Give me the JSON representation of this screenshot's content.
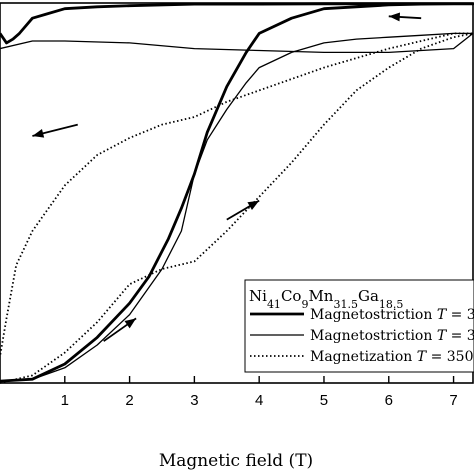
{
  "chart_data": {
    "type": "line",
    "xlabel": "Magnetic field (T)",
    "xlim": [
      0,
      7.3
    ],
    "x_ticks": [
      "1",
      "2",
      "3",
      "4",
      "5",
      "6",
      "7"
    ],
    "ylim": [
      0,
      1
    ],
    "grid": false,
    "legend": {
      "placement": "lower-right",
      "title_parts": [
        {
          "t": "Ni",
          "sub": false
        },
        {
          "t": "41",
          "sub": true
        },
        {
          "t": "Co",
          "sub": false
        },
        {
          "t": "9",
          "sub": true
        },
        {
          "t": "Mn",
          "sub": false
        },
        {
          "t": "31.5",
          "sub": true
        },
        {
          "t": "Ga",
          "sub": false
        },
        {
          "t": "18.5",
          "sub": true
        }
      ],
      "entries": [
        {
          "label": "Magnetostriction",
          "t_symbol": "T",
          "t_text": " = 3",
          "style": "thick"
        },
        {
          "label": "Magnetostriction",
          "t_symbol": "T",
          "t_text": " = 3",
          "style": "thin"
        },
        {
          "label": "Magnetization",
          "t_symbol": "T",
          "t_text": " = 350",
          "style": "dotted"
        }
      ]
    },
    "series": [
      {
        "style": "thick",
        "x": [
          0,
          0.5,
          1,
          1.5,
          2,
          2.3,
          2.6,
          2.8,
          3,
          3.2,
          3.5,
          3.8,
          4,
          4.5,
          5,
          5.5,
          6,
          6.5,
          7,
          7.3,
          7,
          6,
          5,
          4,
          3,
          2,
          1.5,
          1,
          0.7,
          0.5,
          0.3,
          0.2,
          0.1,
          0
        ],
        "y": [
          0.005,
          0.01,
          0.05,
          0.12,
          0.21,
          0.28,
          0.38,
          0.46,
          0.55,
          0.66,
          0.78,
          0.87,
          0.92,
          0.96,
          0.985,
          0.99,
          0.995,
          0.997,
          0.998,
          0.998,
          0.998,
          0.998,
          0.998,
          0.997,
          0.997,
          0.993,
          0.99,
          0.985,
          0.97,
          0.96,
          0.92,
          0.905,
          0.895,
          0.92
        ]
      },
      {
        "style": "thin",
        "x": [
          0,
          0.5,
          1,
          1.5,
          2,
          2.5,
          2.8,
          3,
          3.2,
          3.5,
          3.8,
          4,
          4.5,
          5,
          5.5,
          6,
          6.5,
          7,
          7.3,
          7,
          6,
          5,
          4,
          3,
          2,
          1,
          0.5,
          0
        ],
        "y": [
          0.005,
          0.01,
          0.04,
          0.1,
          0.18,
          0.3,
          0.4,
          0.55,
          0.64,
          0.72,
          0.79,
          0.83,
          0.87,
          0.895,
          0.905,
          0.91,
          0.915,
          0.92,
          0.92,
          0.88,
          0.87,
          0.87,
          0.875,
          0.88,
          0.895,
          0.9,
          0.9,
          0.88
        ]
      },
      {
        "style": "dotted",
        "x": [
          0,
          0.5,
          1,
          1.5,
          2,
          2.5,
          3,
          3.5,
          4,
          4.5,
          5,
          5.5,
          6,
          6.5,
          7,
          7.3,
          7,
          6.5,
          6,
          5.5,
          5,
          4.5,
          4,
          3.5,
          3,
          2.5,
          2,
          1.5,
          1,
          0.5,
          0.25,
          0.1,
          0
        ],
        "y": [
          0.0,
          0.02,
          0.08,
          0.16,
          0.26,
          0.3,
          0.32,
          0.4,
          0.49,
          0.58,
          0.68,
          0.77,
          0.83,
          0.88,
          0.91,
          0.92,
          0.92,
          0.9,
          0.88,
          0.855,
          0.83,
          0.8,
          0.77,
          0.74,
          0.7,
          0.68,
          0.645,
          0.6,
          0.52,
          0.4,
          0.31,
          0.17,
          0.07
        ]
      }
    ],
    "arrows": [
      {
        "x1": 6.5,
        "y1": 0.96,
        "x2": 6.0,
        "y2": 0.965
      },
      {
        "x1": 1.2,
        "y1": 0.68,
        "x2": 0.5,
        "y2": 0.65
      },
      {
        "x1": 3.5,
        "y1": 0.43,
        "x2": 4.0,
        "y2": 0.48
      },
      {
        "x1": 1.6,
        "y1": 0.11,
        "x2": 2.1,
        "y2": 0.17
      }
    ]
  }
}
